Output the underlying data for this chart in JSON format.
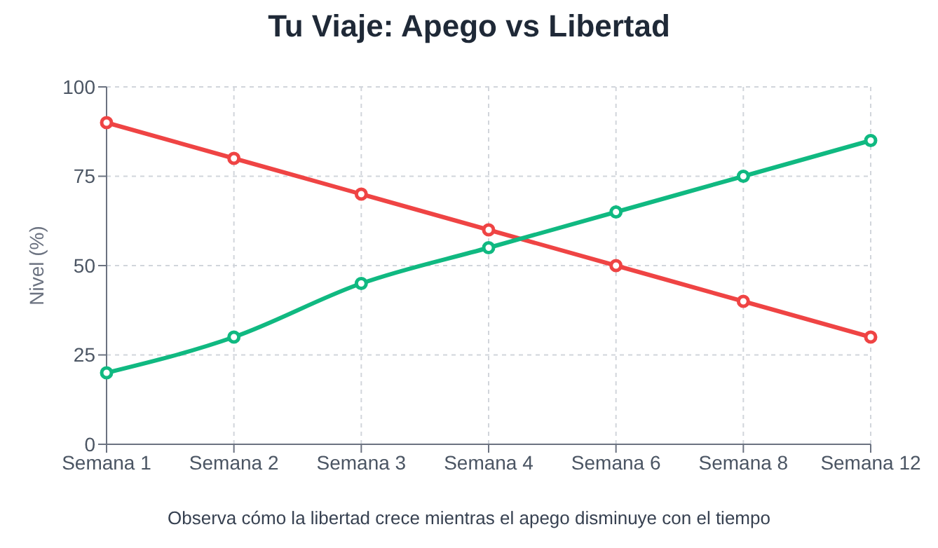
{
  "chart_data": {
    "type": "line",
    "title": "Tu Viaje: Apego vs Libertad",
    "ylabel": "Nivel (%)",
    "categories": [
      "Semana 1",
      "Semana 2",
      "Semana 3",
      "Semana 4",
      "Semana 6",
      "Semana 8",
      "Semana 12"
    ],
    "series": [
      {
        "color": "#ef4444",
        "values": [
          90,
          80,
          70,
          60,
          50,
          40,
          30
        ]
      },
      {
        "color": "#10b981",
        "values": [
          20,
          30,
          45,
          55,
          65,
          75,
          85
        ]
      }
    ],
    "ylim": [
      0,
      100
    ],
    "yticks": [
      0,
      25,
      50,
      75,
      100
    ],
    "grid": true,
    "marker": "circle",
    "line_style": "solid",
    "legend": false,
    "annotations": [
      "Observa cómo la libertad crece mientras el apego disminuye con el tiempo"
    ]
  }
}
